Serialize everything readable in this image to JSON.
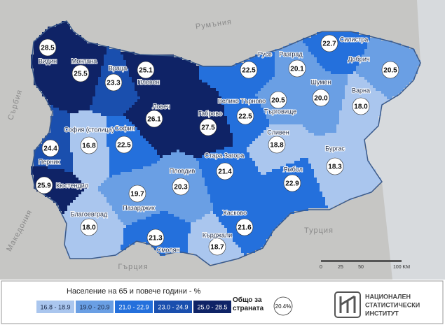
{
  "map": {
    "regions": [
      {
        "name": "Видин",
        "value": "28.5",
        "color": "#0f2366"
      },
      {
        "name": "Монтана",
        "value": "25.5",
        "color": "#0f2366"
      },
      {
        "name": "Враца",
        "value": "23.3",
        "color": "#1a4fae"
      },
      {
        "name": "Плевен",
        "value": "25.1",
        "color": "#0f2366"
      },
      {
        "name": "Ловеч",
        "value": "26.1",
        "color": "#0f2366"
      },
      {
        "name": "Габрово",
        "value": "27.5",
        "color": "#0f2366"
      },
      {
        "name": "Велико Търново",
        "value": "22.5",
        "color": "#2470dc"
      },
      {
        "name": "Русе",
        "value": "22.5",
        "color": "#2470dc"
      },
      {
        "name": "Разград",
        "value": "20.1",
        "color": "#6a9fe4"
      },
      {
        "name": "Силистра",
        "value": "22.7",
        "color": "#2470dc"
      },
      {
        "name": "Добрич",
        "value": "20.5",
        "color": "#6a9fe4"
      },
      {
        "name": "Шумен",
        "value": "20.0",
        "color": "#6a9fe4"
      },
      {
        "name": "Търговище",
        "value": "20.5",
        "color": "#6a9fe4"
      },
      {
        "name": "Варна",
        "value": "18.0",
        "color": "#aac6ee"
      },
      {
        "name": "София (столица)",
        "value": "16.8",
        "color": "#aac6ee"
      },
      {
        "name": "София",
        "value": "22.5",
        "color": "#2470dc"
      },
      {
        "name": "Перник",
        "value": "24.4",
        "color": "#1a4fae"
      },
      {
        "name": "Кюстендил",
        "value": "25.9",
        "color": "#0f2366"
      },
      {
        "name": "Благоевград",
        "value": "18.0",
        "color": "#aac6ee"
      },
      {
        "name": "Пазарджик",
        "value": "19.7",
        "color": "#6a9fe4"
      },
      {
        "name": "Пловдив",
        "value": "20.3",
        "color": "#6a9fe4"
      },
      {
        "name": "Стара Загора",
        "value": "21.4",
        "color": "#2470dc"
      },
      {
        "name": "Сливен",
        "value": "18.8",
        "color": "#aac6ee"
      },
      {
        "name": "Бургас",
        "value": "18.3",
        "color": "#aac6ee"
      },
      {
        "name": "Ямбол",
        "value": "22.9",
        "color": "#2470dc"
      },
      {
        "name": "Хасково",
        "value": "21.6",
        "color": "#2470dc"
      },
      {
        "name": "Кърджали",
        "value": "18.7",
        "color": "#aac6ee"
      },
      {
        "name": "Смолян",
        "value": "21.3",
        "color": "#2470dc"
      }
    ],
    "neighbors": [
      "Румъния",
      "Сърбия",
      "Македония",
      "Гърция",
      "Турция"
    ],
    "scale_labels": [
      "0",
      "25",
      "50",
      "100 KM"
    ]
  },
  "legend": {
    "title": "Население на 65 и повече години - %",
    "classes": [
      {
        "label": "16.8 - 18.9",
        "color": "#aac6ee"
      },
      {
        "label": "19.0 - 20.9",
        "color": "#6a9fe4"
      },
      {
        "label": "21.0 - 22.9",
        "color": "#2470dc"
      },
      {
        "label": "23.0 - 24.9",
        "color": "#1a4fae"
      },
      {
        "label": "25.0 - 28.5",
        "color": "#0f2366"
      }
    ],
    "total_label": "Общо за страната",
    "total_value": "20.4%"
  },
  "logo": {
    "lines": [
      "НАЦИОНАЛЕН",
      "СТАТИСТИЧЕСКИ",
      "ИНСТИТУТ"
    ]
  }
}
